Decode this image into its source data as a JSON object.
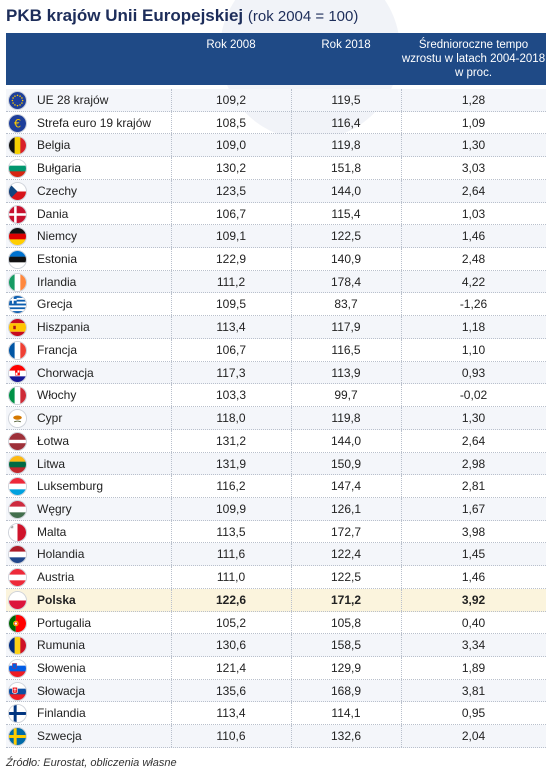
{
  "title": "PKB krajów Unii Europejskiej",
  "title_suffix": "(rok 2004 = 100)",
  "headers": {
    "col2008": "Rok 2008",
    "col2018": "Rok 2018",
    "rate": "Średnioroczne tempo wzrostu w latach 2004-2018 w proc."
  },
  "source": "Źródło: Eurostat, obliczenia własne",
  "colors": {
    "header_bg": "#1f4a86",
    "highlight_row": "#fbf4dd"
  },
  "highlight_country": "Polska",
  "chart_data": {
    "type": "table",
    "columns": [
      "",
      "Rok 2008",
      "Rok 2018",
      "Średnioroczne tempo wzrostu w latach 2004-2018 w proc."
    ],
    "rows": [
      {
        "flag": "eu-flag-icon",
        "name": "UE 28 krajów",
        "v2008": "109,2",
        "v2018": "119,5",
        "rate": "1,28"
      },
      {
        "flag": "euro-flag-icon",
        "name": "Strefa euro 19 krajów",
        "v2008": "108,5",
        "v2018": "116,4",
        "rate": "1,09"
      },
      {
        "flag": "belgium-flag-icon",
        "name": "Belgia",
        "v2008": "109,0",
        "v2018": "119,8",
        "rate": "1,30"
      },
      {
        "flag": "bulgaria-flag-icon",
        "name": "Bułgaria",
        "v2008": "130,2",
        "v2018": "151,8",
        "rate": "3,03"
      },
      {
        "flag": "czechia-flag-icon",
        "name": "Czechy",
        "v2008": "123,5",
        "v2018": "144,0",
        "rate": "2,64"
      },
      {
        "flag": "denmark-flag-icon",
        "name": "Dania",
        "v2008": "106,7",
        "v2018": "115,4",
        "rate": "1,03"
      },
      {
        "flag": "germany-flag-icon",
        "name": "Niemcy",
        "v2008": "109,1",
        "v2018": "122,5",
        "rate": "1,46"
      },
      {
        "flag": "estonia-flag-icon",
        "name": "Estonia",
        "v2008": "122,9",
        "v2018": "140,9",
        "rate": "2,48"
      },
      {
        "flag": "ireland-flag-icon",
        "name": "Irlandia",
        "v2008": "111,2",
        "v2018": "178,4",
        "rate": "4,22"
      },
      {
        "flag": "greece-flag-icon",
        "name": "Grecja",
        "v2008": "109,5",
        "v2018": "83,7",
        "rate": "-1,26"
      },
      {
        "flag": "spain-flag-icon",
        "name": "Hiszpania",
        "v2008": "113,4",
        "v2018": "117,9",
        "rate": "1,18"
      },
      {
        "flag": "france-flag-icon",
        "name": "Francja",
        "v2008": "106,7",
        "v2018": "116,5",
        "rate": "1,10"
      },
      {
        "flag": "croatia-flag-icon",
        "name": "Chorwacja",
        "v2008": "117,3",
        "v2018": "113,9",
        "rate": "0,93"
      },
      {
        "flag": "italy-flag-icon",
        "name": "Włochy",
        "v2008": "103,3",
        "v2018": "99,7",
        "rate": "-0,02"
      },
      {
        "flag": "cyprus-flag-icon",
        "name": "Cypr",
        "v2008": "118,0",
        "v2018": "119,8",
        "rate": "1,30"
      },
      {
        "flag": "latvia-flag-icon",
        "name": "Łotwa",
        "v2008": "131,2",
        "v2018": "144,0",
        "rate": "2,64"
      },
      {
        "flag": "lithuania-flag-icon",
        "name": "Litwa",
        "v2008": "131,9",
        "v2018": "150,9",
        "rate": "2,98"
      },
      {
        "flag": "luxembourg-flag-icon",
        "name": "Luksemburg",
        "v2008": "116,2",
        "v2018": "147,4",
        "rate": "2,81"
      },
      {
        "flag": "hungary-flag-icon",
        "name": "Węgry",
        "v2008": "109,9",
        "v2018": "126,1",
        "rate": "1,67"
      },
      {
        "flag": "malta-flag-icon",
        "name": "Malta",
        "v2008": "113,5",
        "v2018": "172,7",
        "rate": "3,98"
      },
      {
        "flag": "netherlands-flag-icon",
        "name": "Holandia",
        "v2008": "111,6",
        "v2018": "122,4",
        "rate": "1,45"
      },
      {
        "flag": "austria-flag-icon",
        "name": "Austria",
        "v2008": "111,0",
        "v2018": "122,5",
        "rate": "1,46"
      },
      {
        "flag": "poland-flag-icon",
        "name": "Polska",
        "v2008": "122,6",
        "v2018": "171,2",
        "rate": "3,92"
      },
      {
        "flag": "portugal-flag-icon",
        "name": "Portugalia",
        "v2008": "105,2",
        "v2018": "105,8",
        "rate": "0,40"
      },
      {
        "flag": "romania-flag-icon",
        "name": "Rumunia",
        "v2008": "130,6",
        "v2018": "158,5",
        "rate": "3,34"
      },
      {
        "flag": "slovenia-flag-icon",
        "name": "Słowenia",
        "v2008": "121,4",
        "v2018": "129,9",
        "rate": "1,89"
      },
      {
        "flag": "slovakia-flag-icon",
        "name": "Słowacja",
        "v2008": "135,6",
        "v2018": "168,9",
        "rate": "3,81"
      },
      {
        "flag": "finland-flag-icon",
        "name": "Finlandia",
        "v2008": "113,4",
        "v2018": "114,1",
        "rate": "0,95"
      },
      {
        "flag": "sweden-flag-icon",
        "name": "Szwecja",
        "v2008": "110,6",
        "v2018": "132,6",
        "rate": "2,04"
      }
    ]
  }
}
